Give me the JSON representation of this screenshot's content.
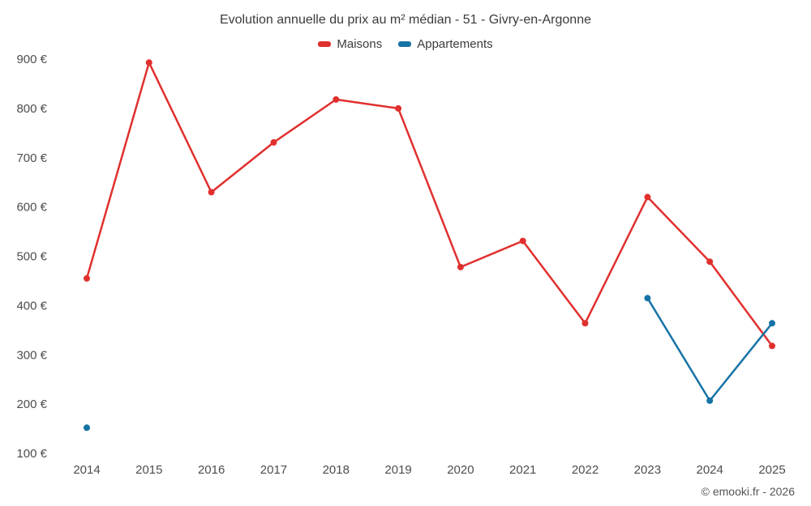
{
  "title": "Evolution annuelle du prix au m² médian - 51 - Givry-en-Argonne",
  "footer": "© emooki.fr - 2026",
  "chart_data": {
    "type": "line",
    "title": "Evolution annuelle du prix au m² médian - 51 - Givry-en-Argonne",
    "categories": [
      "2014",
      "2015",
      "2016",
      "2017",
      "2018",
      "2019",
      "2020",
      "2021",
      "2022",
      "2023",
      "2024",
      "2025"
    ],
    "series": [
      {
        "name": "Maisons",
        "color": "#e0302e",
        "values": [
          455,
          893,
          630,
          731,
          818,
          800,
          478,
          531,
          364,
          620,
          489,
          318
        ]
      },
      {
        "name": "Appartements",
        "color": "#1673a6",
        "values": [
          152,
          null,
          null,
          null,
          null,
          null,
          null,
          null,
          null,
          415,
          207,
          364
        ]
      }
    ],
    "ylim": [
      100,
      900
    ],
    "y_ticks": [
      100,
      200,
      300,
      400,
      500,
      600,
      700,
      800,
      900
    ],
    "y_tick_suffix": " €",
    "xlabel": "",
    "ylabel": "",
    "grid": false,
    "legend_position": "top"
  }
}
